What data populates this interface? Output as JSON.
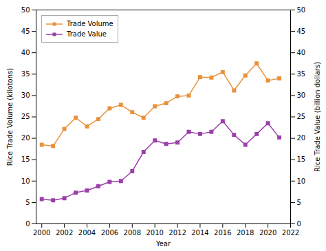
{
  "chart_data": {
    "type": "line",
    "xlabel": "Year",
    "ylabel": "Rice Trade Volume (kilotons)",
    "y2label": "Rice Trade Value (billion dollars)",
    "x": [
      2000,
      2001,
      2002,
      2003,
      2004,
      2005,
      2006,
      2007,
      2008,
      2009,
      2010,
      2011,
      2012,
      2013,
      2014,
      2015,
      2016,
      2017,
      2018,
      2019,
      2020,
      2021
    ],
    "series": [
      {
        "name": "Trade Volume",
        "color": "#E8923C",
        "marker": "square",
        "values": [
          18.5,
          18.2,
          22.2,
          24.8,
          22.8,
          24.5,
          27.0,
          27.8,
          26.1,
          24.8,
          27.5,
          28.2,
          29.8,
          30.0,
          34.3,
          34.2,
          35.5,
          31.2,
          34.7,
          37.5,
          33.5,
          34.0
        ]
      },
      {
        "name": "Trade Value",
        "color": "#9B3FAA",
        "marker": "square",
        "axis": "y2",
        "values": [
          5.8,
          5.5,
          6.0,
          7.3,
          7.8,
          8.8,
          9.8,
          10.0,
          12.3,
          16.8,
          19.5,
          18.7,
          19.0,
          21.5,
          21.0,
          21.5,
          24.0,
          20.8,
          18.5,
          21.0,
          23.5,
          20.2
        ]
      }
    ],
    "xlim": [
      1999.5,
      2022
    ],
    "xticks": [
      2000,
      2002,
      2004,
      2006,
      2008,
      2010,
      2012,
      2014,
      2016,
      2018,
      2020,
      2022
    ],
    "ylim": [
      0,
      50
    ],
    "yticks": [
      0,
      5,
      10,
      15,
      20,
      25,
      30,
      35,
      40,
      45,
      50
    ],
    "y2lim": [
      0,
      50
    ],
    "y2ticks": [
      0,
      5,
      10,
      15,
      20,
      25,
      30,
      35,
      40,
      45,
      50
    ],
    "legend": "upper left",
    "grid": false
  }
}
